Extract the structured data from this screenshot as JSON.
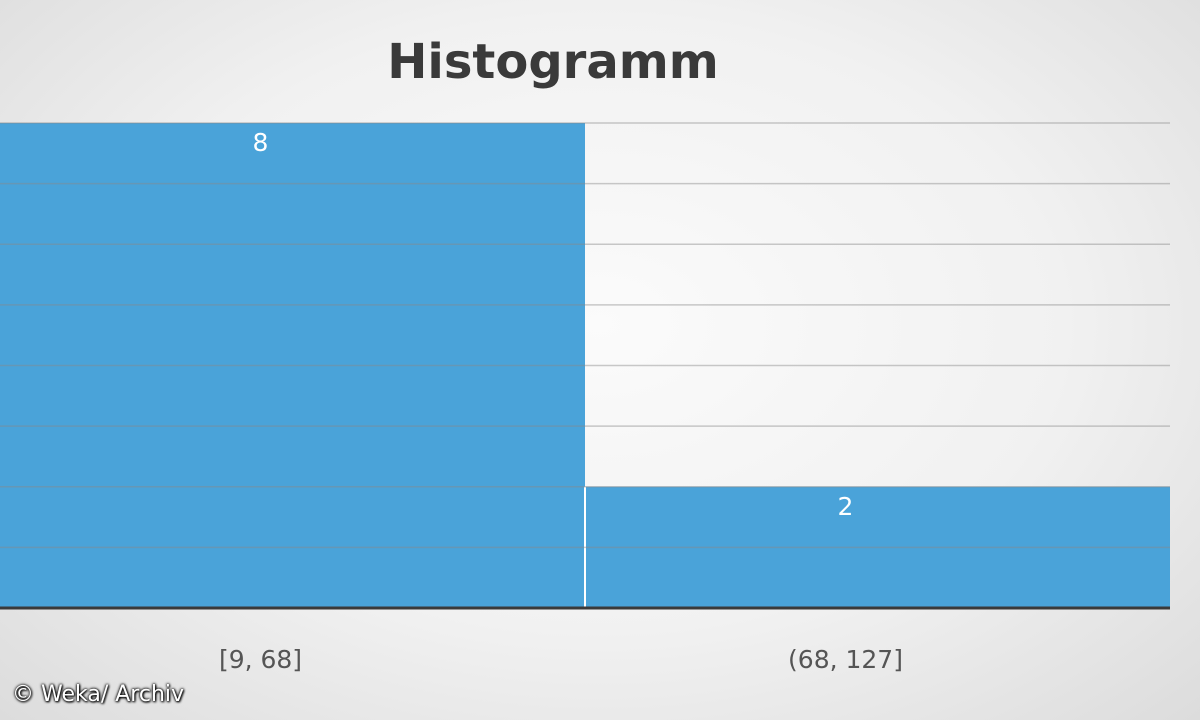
{
  "chart_data": {
    "type": "bar",
    "title": "Histogramm",
    "categories": [
      "[9, 68]",
      "(68, 127]"
    ],
    "values": [
      8,
      2
    ],
    "ylim": [
      0,
      8
    ],
    "grid": true,
    "data_labels": true,
    "bar_color": "#4aa3d9"
  },
  "credit": "© Weka/ Archiv"
}
